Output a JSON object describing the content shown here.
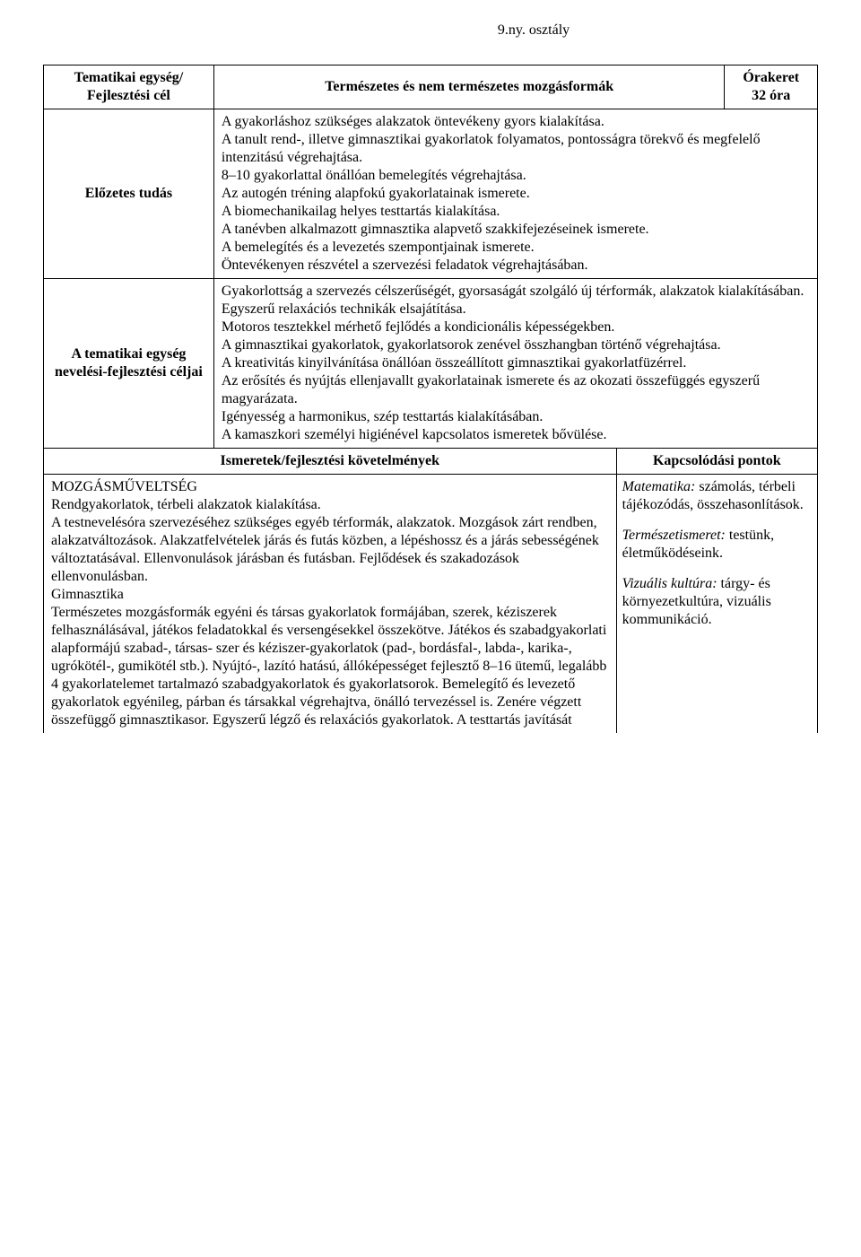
{
  "page_title": "9.ny. osztály",
  "header": {
    "left": "Tematikai egység/\nFejlesztési cél",
    "mid": "Természetes és nem természetes mozgásformák",
    "right_top": "Órakeret",
    "right_bottom": "32 óra"
  },
  "row_prior": {
    "label": "Előzetes tudás",
    "content": "A gyakorláshoz szükséges alakzatok öntevékeny gyors kialakítása.\nA tanult rend-, illetve gimnasztikai gyakorlatok folyamatos, pontosságra törekvő és megfelelő intenzitású végrehajtása.\n8–10 gyakorlattal önállóan bemelegítés végrehajtása.\nAz autogén tréning alapfokú gyakorlatainak ismerete.\nA biomechanikailag helyes testtartás kialakítása.\nA tanévben alkalmazott gimnasztika alapvető szakkifejezéseinek ismerete.\nA bemelegítés és a levezetés szempontjainak ismerete.\nÖntevékenyen részvétel a szervezési feladatok végrehajtásában."
  },
  "row_goals": {
    "label": "A tematikai egység nevelési-fejlesztési céljai",
    "content": "Gyakorlottság a szervezés célszerűségét, gyorsaságát szolgáló új térformák, alakzatok kialakításában.\nEgyszerű relaxációs technikák elsajátítása.\nMotoros tesztekkel mérhető fejlődés a kondicionális képességekben.\nA gimnasztikai gyakorlatok, gyakorlatsorok zenével összhangban történő végrehajtása.\nA kreativitás kinyilvánítása önállóan összeállított gimnasztikai gyakorlatfüzérrel.\nAz erősítés és nyújtás ellenjavallt gyakorlatainak ismerete és az okozati összefüggés egyszerű magyarázata.\nIgényesség a harmonikus, szép testtartás kialakításában.\nA kamaszkori személyi higiénével kapcsolatos ismeretek bővülése."
  },
  "sub_header": {
    "left": "Ismeretek/fejlesztési követelmények",
    "right": "Kapcsolódási pontok"
  },
  "requirements": {
    "block1_title": "MOZGÁSMŰVELTSÉG",
    "block1_text": "Rendgyakorlatok, térbeli alakzatok kialakítása.\nA testnevelésóra szervezéséhez szükséges egyéb térformák, alakzatok. Mozgások zárt rendben, alakzatváltozások. Alakzatfelvételek járás és futás közben, a lépéshossz és a járás sebességének változtatásával. Ellenvonulások járásban és futásban. Fejlődések és szakadozások ellenvonulásban.",
    "block2_title": "Gimnasztika",
    "block2_text": "Természetes mozgásformák egyéni és társas gyakorlatok formájában, szerek, kéziszerek felhasználásával, játékos feladatokkal és versengésekkel összekötve. Játékos és szabadgyakorlati alapformájú szabad-, társas- szer és kéziszer-gyakorlatok (pad-, bordásfal-, labda-, karika-, ugrókötél-, gumikötél stb.). Nyújtó-, lazító hatású, állóképességet fejlesztő 8–16 ütemű, legalább 4 gyakorlatelemet tartalmazó szabadgyakorlatok és gyakorlatsorok. Bemelegítő és levezető gyakorlatok egyénileg, párban és társakkal végrehajtva, önálló tervezéssel is. Zenére végzett összefüggő gimnasztikasor. Egyszerű légző és relaxációs gyakorlatok. A testtartás javítását"
  },
  "links": {
    "l1_it": "Matematika:",
    "l1_txt": " számolás, térbeli tájékozódás, összehasonlítások.",
    "l2_it": "Természetismeret:",
    "l2_txt": " testünk, életműködéseink.",
    "l3_it": "Vizuális kultúra:",
    "l3_txt": " tárgy- és környezetkultúra, vizuális kommunikáció."
  }
}
